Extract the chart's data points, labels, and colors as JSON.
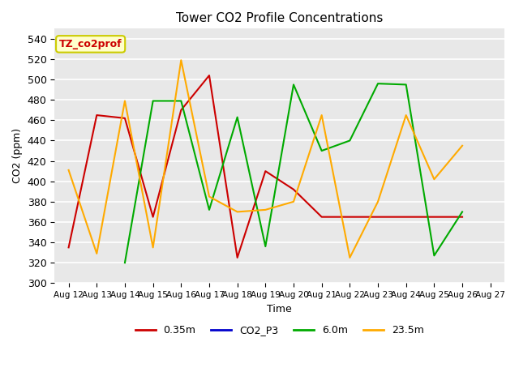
{
  "title": "Tower CO2 Profile Concentrations",
  "xlabel": "Time",
  "ylabel": "CO2 (ppm)",
  "ylim": [
    300,
    550
  ],
  "yticks": [
    300,
    320,
    340,
    360,
    380,
    400,
    420,
    440,
    460,
    480,
    500,
    520,
    540
  ],
  "x_labels": [
    "Aug 12",
    "Aug 13",
    "Aug 14",
    "Aug 15",
    "Aug 16",
    "Aug 17",
    "Aug 18",
    "Aug 19",
    "Aug 20",
    "Aug 21",
    "Aug 22",
    "Aug 23",
    "Aug 24",
    "Aug 25",
    "Aug 26",
    "Aug 27"
  ],
  "series": [
    {
      "name": "0.35m",
      "color": "#cc0000",
      "values": [
        335,
        465,
        462,
        365,
        470,
        504,
        325,
        410,
        392,
        365,
        365,
        365,
        365,
        365,
        365,
        null
      ]
    },
    {
      "name": "CO2_P3",
      "color": "#0000cc",
      "values": [
        null,
        null,
        null,
        null,
        null,
        null,
        null,
        null,
        null,
        null,
        null,
        null,
        null,
        null,
        null,
        null
      ]
    },
    {
      "name": "6.0m",
      "color": "#00aa00",
      "values": [
        null,
        null,
        320,
        479,
        479,
        372,
        463,
        336,
        495,
        430,
        440,
        496,
        495,
        327,
        370,
        null
      ]
    },
    {
      "name": "23.5m",
      "color": "#ffaa00",
      "values": [
        411,
        329,
        479,
        335,
        519,
        385,
        370,
        372,
        380,
        465,
        325,
        380,
        465,
        402,
        435,
        null
      ]
    }
  ],
  "annotation_text": "TZ_co2prof",
  "annotation_color": "#cc0000",
  "annotation_bg": "#ffffcc",
  "annotation_edge": "#cccc00",
  "fig_bg": "#ffffff",
  "plot_bg": "#e8e8e8"
}
